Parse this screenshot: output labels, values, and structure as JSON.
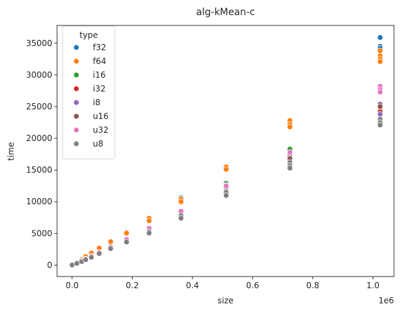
{
  "chart_data": {
    "type": "scatter",
    "title": "alg-kMean-c",
    "xlabel": "size",
    "ylabel": "time",
    "x_offset_label": "1e6",
    "xlim": [
      -0.05,
      1.07
    ],
    "ylim": [
      -1800,
      37800
    ],
    "x_ticks": [
      0.0,
      0.2,
      0.4,
      0.6,
      0.8,
      1.0
    ],
    "x_tick_labels": [
      "0.0",
      "0.2",
      "0.4",
      "0.6",
      "0.8",
      "1.0"
    ],
    "y_ticks": [
      0,
      5000,
      10000,
      15000,
      20000,
      25000,
      30000,
      35000
    ],
    "y_tick_labels": [
      "0",
      "5000",
      "10000",
      "15000",
      "20000",
      "25000",
      "30000",
      "35000"
    ],
    "grid": false,
    "legend": {
      "title": "type",
      "placement": "top-left"
    },
    "series": [
      {
        "name": "f32",
        "color": "#1f77b4",
        "points": [
          [
            0.0,
            30
          ],
          [
            0.016,
            420
          ],
          [
            0.032,
            850
          ],
          [
            0.045,
            1300
          ],
          [
            0.064,
            1850
          ],
          [
            0.09,
            2650
          ],
          [
            0.128,
            3650
          ],
          [
            0.181,
            5150
          ],
          [
            0.256,
            7300
          ],
          [
            0.362,
            10600
          ],
          [
            0.512,
            15300
          ],
          [
            0.724,
            22400
          ],
          [
            1.024,
            35900
          ],
          [
            1.024,
            34500
          ],
          [
            1.024,
            34200
          ]
        ]
      },
      {
        "name": "f64",
        "color": "#ff7f0e",
        "points": [
          [
            0.0,
            35
          ],
          [
            0.016,
            430
          ],
          [
            0.032,
            880
          ],
          [
            0.045,
            1350
          ],
          [
            0.064,
            1900
          ],
          [
            0.09,
            2700
          ],
          [
            0.128,
            3700
          ],
          [
            0.181,
            5050
          ],
          [
            0.256,
            7400
          ],
          [
            0.256,
            7000
          ],
          [
            0.362,
            10400
          ],
          [
            0.362,
            10000
          ],
          [
            0.512,
            15500
          ],
          [
            0.512,
            15100
          ],
          [
            0.724,
            22800
          ],
          [
            0.724,
            22200
          ],
          [
            0.724,
            21800
          ],
          [
            1.024,
            33800
          ],
          [
            1.024,
            33000
          ],
          [
            1.024,
            32500
          ],
          [
            1.024,
            32100
          ]
        ]
      },
      {
        "name": "i16",
        "color": "#2ca02c",
        "points": [
          [
            0.0,
            25
          ],
          [
            0.016,
            320
          ],
          [
            0.032,
            650
          ],
          [
            0.045,
            950
          ],
          [
            0.064,
            1350
          ],
          [
            0.09,
            1950
          ],
          [
            0.128,
            2750
          ],
          [
            0.181,
            3900
          ],
          [
            0.256,
            5600
          ],
          [
            0.362,
            8300
          ],
          [
            0.512,
            12900
          ],
          [
            0.724,
            18300
          ],
          [
            1.024,
            24500
          ]
        ]
      },
      {
        "name": "i32",
        "color": "#d62728",
        "points": [
          [
            0.0,
            25
          ],
          [
            0.016,
            330
          ],
          [
            0.032,
            660
          ],
          [
            0.045,
            970
          ],
          [
            0.064,
            1380
          ],
          [
            0.09,
            1980
          ],
          [
            0.128,
            2800
          ],
          [
            0.181,
            4000
          ],
          [
            0.256,
            5700
          ],
          [
            0.362,
            8400
          ],
          [
            0.512,
            12600
          ],
          [
            0.724,
            17700
          ],
          [
            1.024,
            24200
          ]
        ]
      },
      {
        "name": "i8",
        "color": "#9467bd",
        "points": [
          [
            0.0,
            20
          ],
          [
            0.016,
            300
          ],
          [
            0.032,
            600
          ],
          [
            0.045,
            900
          ],
          [
            0.064,
            1300
          ],
          [
            0.09,
            1900
          ],
          [
            0.128,
            2700
          ],
          [
            0.181,
            3850
          ],
          [
            0.256,
            5500
          ],
          [
            0.362,
            8100
          ],
          [
            0.512,
            12100
          ],
          [
            0.724,
            17200
          ],
          [
            1.024,
            25400
          ],
          [
            1.024,
            23800
          ]
        ]
      },
      {
        "name": "u16",
        "color": "#8c564b",
        "points": [
          [
            0.0,
            22
          ],
          [
            0.016,
            310
          ],
          [
            0.032,
            620
          ],
          [
            0.045,
            920
          ],
          [
            0.064,
            1320
          ],
          [
            0.09,
            1920
          ],
          [
            0.128,
            2720
          ],
          [
            0.181,
            3870
          ],
          [
            0.256,
            5550
          ],
          [
            0.362,
            8200
          ],
          [
            0.512,
            12300
          ],
          [
            0.724,
            16800
          ],
          [
            1.024,
            25000
          ]
        ]
      },
      {
        "name": "u32",
        "color": "#e377c2",
        "points": [
          [
            0.0,
            28
          ],
          [
            0.016,
            340
          ],
          [
            0.032,
            680
          ],
          [
            0.045,
            1000
          ],
          [
            0.064,
            1420
          ],
          [
            0.09,
            2020
          ],
          [
            0.128,
            2850
          ],
          [
            0.181,
            4050
          ],
          [
            0.256,
            5800
          ],
          [
            0.362,
            8500
          ],
          [
            0.512,
            12500
          ],
          [
            0.724,
            17800
          ],
          [
            1.024,
            28200
          ],
          [
            1.024,
            27700
          ],
          [
            1.024,
            27300
          ]
        ]
      },
      {
        "name": "u8",
        "color": "#7f7f7f",
        "points": [
          [
            0.0,
            18
          ],
          [
            0.016,
            280
          ],
          [
            0.032,
            560
          ],
          [
            0.045,
            850
          ],
          [
            0.064,
            1230
          ],
          [
            0.09,
            1820
          ],
          [
            0.128,
            2600
          ],
          [
            0.181,
            3650
          ],
          [
            0.256,
            5300
          ],
          [
            0.256,
            5050
          ],
          [
            0.362,
            7800
          ],
          [
            0.362,
            7400
          ],
          [
            0.512,
            11500
          ],
          [
            0.512,
            11000
          ],
          [
            0.724,
            16200
          ],
          [
            0.724,
            15700
          ],
          [
            0.724,
            15300
          ],
          [
            1.024,
            23000
          ],
          [
            1.024,
            22500
          ],
          [
            1.024,
            22100
          ]
        ]
      }
    ]
  }
}
